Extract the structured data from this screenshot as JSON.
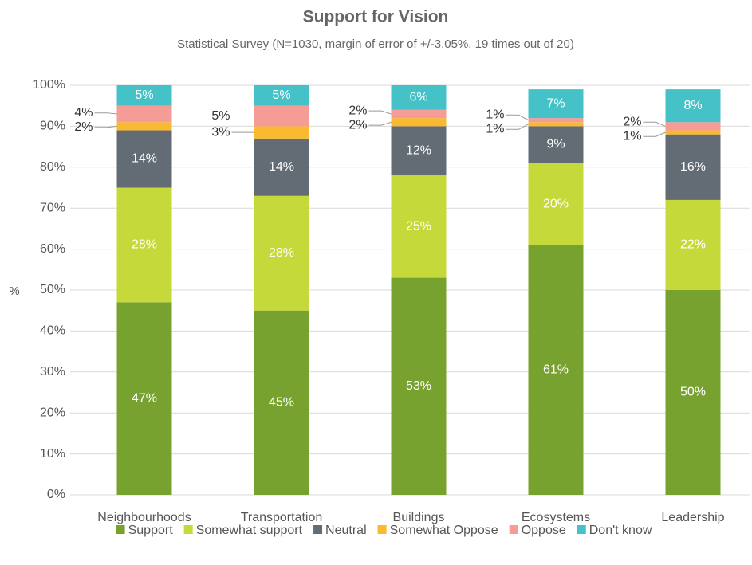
{
  "chart_data": {
    "type": "stacked_bar",
    "title": "Support for Vision",
    "subtitle": "Statistical Survey (N=1030, margin of error of +/-3.05%, 19 times out of 20)",
    "y_label": "%",
    "categories": [
      "Neighbourhoods",
      "Transportation",
      "Buildings",
      "Ecosystems",
      "Leadership"
    ],
    "series": [
      {
        "name": "Support",
        "color": "#78a22f",
        "values": [
          47,
          45,
          53,
          61,
          50
        ],
        "value_labels": [
          "47%",
          "45%",
          "53%",
          "61%",
          "50%"
        ]
      },
      {
        "name": "Somewhat support",
        "color": "#c5d93a",
        "values": [
          28,
          28,
          25,
          20,
          22
        ],
        "value_labels": [
          "28%",
          "28%",
          "25%",
          "20%",
          "22%"
        ]
      },
      {
        "name": "Neutral",
        "color": "#636b74",
        "values": [
          14,
          14,
          12,
          9,
          16
        ],
        "value_labels": [
          "14%",
          "14%",
          "12%",
          "9%",
          "16%"
        ]
      },
      {
        "name": "Somewhat Oppose",
        "color": "#f9b930",
        "values": [
          2,
          3,
          2,
          1,
          1
        ],
        "value_labels": [
          "2%",
          "3%",
          "2%",
          "1%",
          "1%"
        ]
      },
      {
        "name": "Oppose",
        "color": "#f59c96",
        "values": [
          4,
          5,
          2,
          1,
          2
        ],
        "value_labels": [
          "4%",
          "5%",
          "2%",
          "1%",
          "2%"
        ]
      },
      {
        "name": "Don't know",
        "color": "#45c1c8",
        "values": [
          5,
          5,
          6,
          7,
          8
        ],
        "value_labels": [
          "5%",
          "5%",
          "6%",
          "7%",
          "8%"
        ]
      }
    ],
    "ylim": [
      0,
      100
    ],
    "yticks": [
      {
        "value": 0,
        "label": "0%"
      },
      {
        "value": 10,
        "label": "10%"
      },
      {
        "value": 20,
        "label": "20%"
      },
      {
        "value": 30,
        "label": "30%"
      },
      {
        "value": 40,
        "label": "40%"
      },
      {
        "value": 50,
        "label": "50%"
      },
      {
        "value": 60,
        "label": "60%"
      },
      {
        "value": 70,
        "label": "70%"
      },
      {
        "value": 80,
        "label": "80%"
      },
      {
        "value": 90,
        "label": "90%"
      },
      {
        "value": 100,
        "label": "100%"
      }
    ],
    "grid": true,
    "legend": "bottom"
  }
}
